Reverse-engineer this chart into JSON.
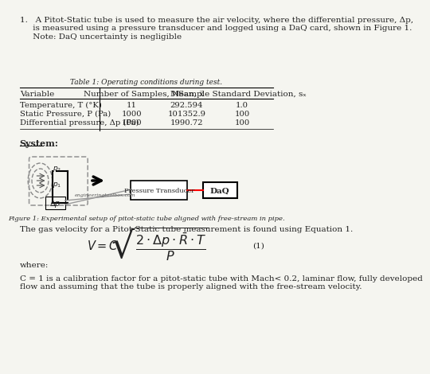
{
  "title_text": "1.   A Pitot-Static tube is used to measure the air velocity, where the differential pressure, Δp,\n     is measured using a pressure transducer and logged using a DaQ card, shown in Figure 1.\n     Note: DaQ uncertainty is negligible",
  "table_title": "Table 1: Operating conditions during test.",
  "table_headers": [
    "Variable",
    "Number of Samples, N",
    "Mean, x̅",
    "Sample Standard Deviation, sₓ"
  ],
  "table_rows": [
    [
      "Temperature, T (°K)",
      "11",
      "292.594",
      "1.0"
    ],
    [
      "Static Pressure, P (Pa)",
      "1000",
      "101352.9",
      "100"
    ],
    [
      "Differential pressure, Δp (Pa)",
      "1000",
      "1990.72",
      "100"
    ]
  ],
  "system_label": "System:",
  "figure_caption": "Figure 1: Experimental setup of pitot-static tube aligned with free-stream in pipe.",
  "eq_text": "The gas velocity for a Pitot-Static tube measurement is found using Equation 1.",
  "where_text": "where:",
  "c_text": "C = 1 is a calibration factor for a pitot-static tube with Mach< 0.2, laminar flow, fully developed\nflow and assuming that the tube is properly aligned with the free-stream velocity.",
  "bg_color": "#f5f5f0",
  "text_color": "#222222"
}
